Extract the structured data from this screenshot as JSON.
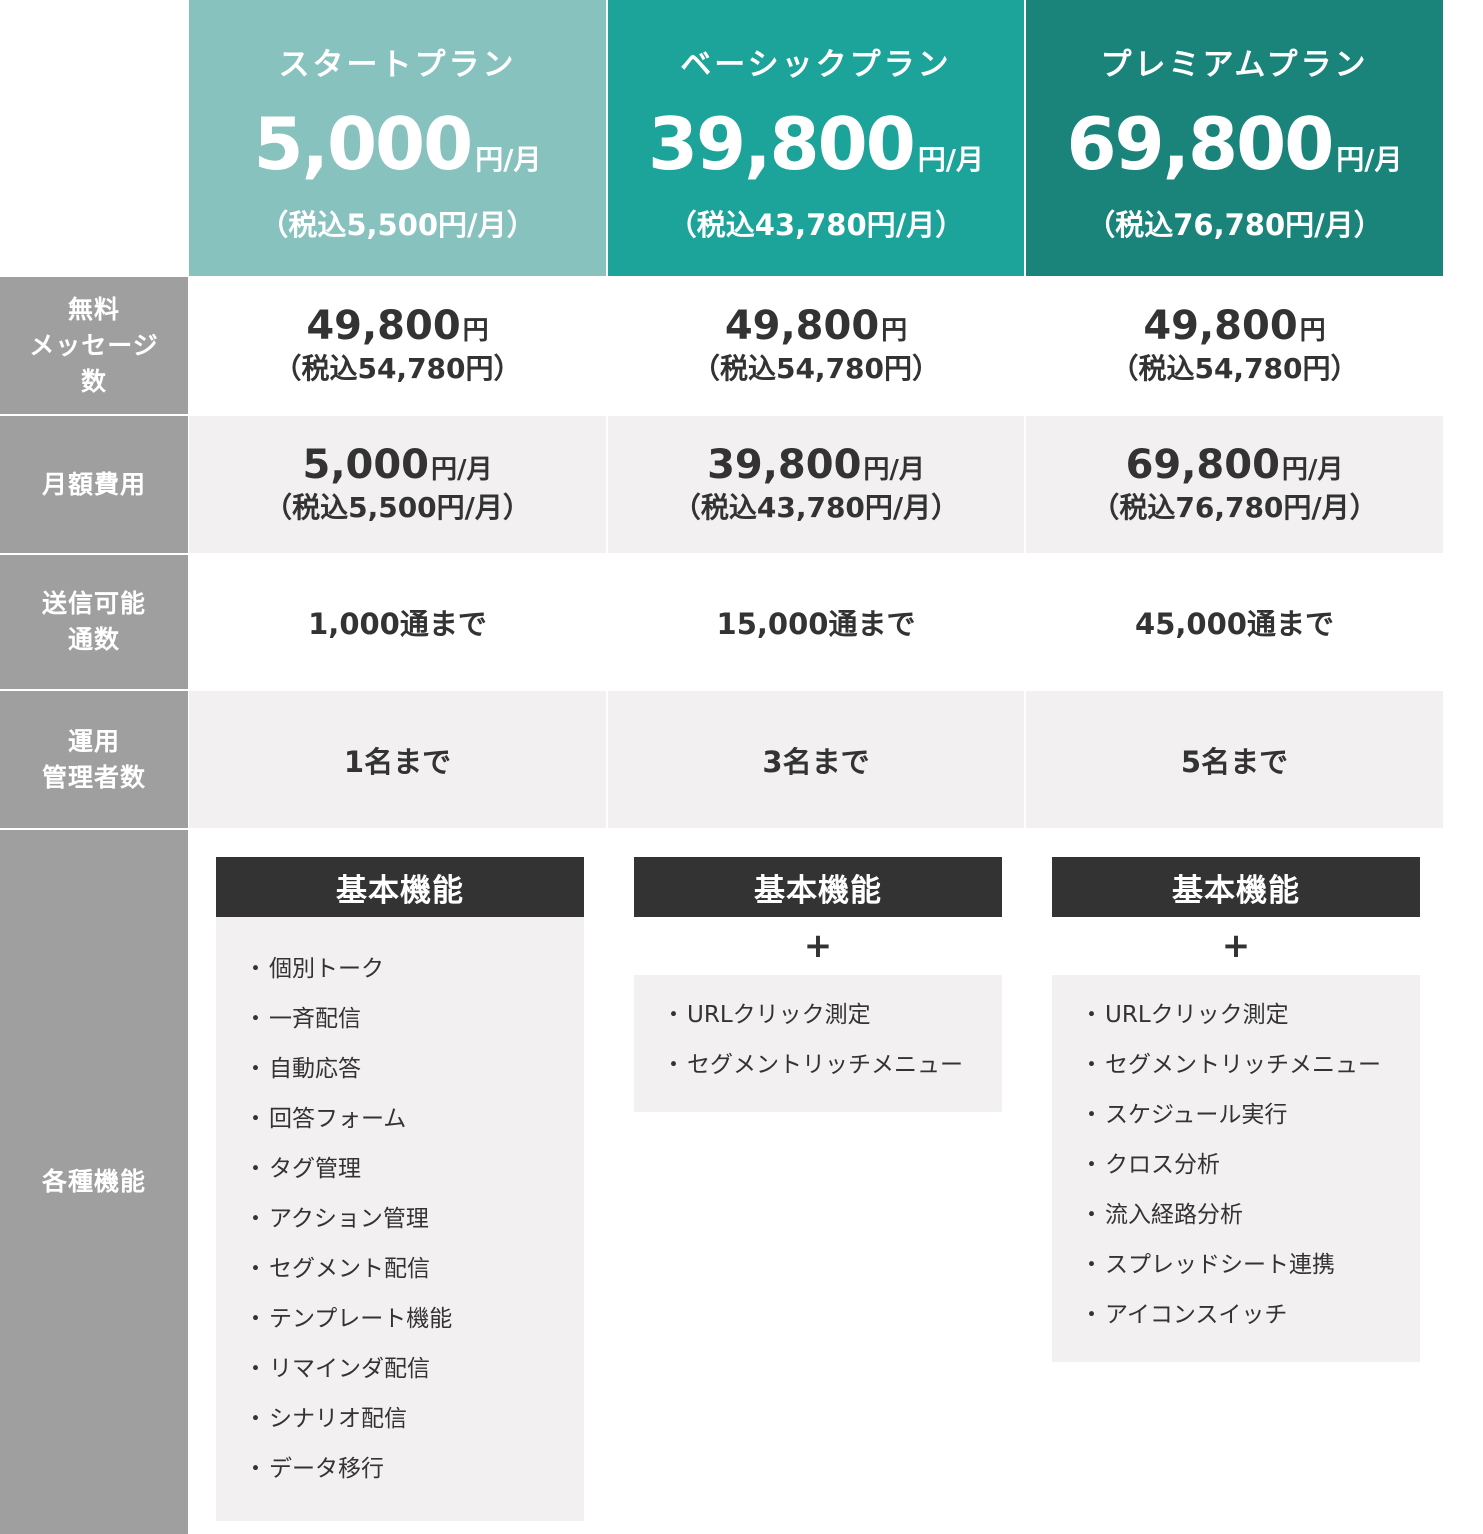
{
  "colors": {
    "start": "#87c2bf",
    "basic": "#1ca39a",
    "premium": "#1a847b",
    "label_bg": "#9f9f9f",
    "feature_head": "#333333",
    "cell_gray": "#f2f0f0"
  },
  "plans": [
    {
      "name": "スタートプラン",
      "price": "5,000",
      "unit": "円/月",
      "tax": "（税込5,500円/月）",
      "free_msg_price": "49,800",
      "free_msg_unit": "円",
      "free_msg_tax": "（税込54,780円）",
      "monthly_price": "5,000",
      "monthly_unit": "円/月",
      "monthly_tax": "（税込5,500円/月）",
      "send_count": "1,000通まで",
      "admins": "1名まで",
      "feature_title": "基本機能",
      "plus": "",
      "features": [
        "個別トーク",
        "一斉配信",
        "自動応答",
        "回答フォーム",
        "タグ管理",
        "アクション管理",
        "セグメント配信",
        "テンプレート機能",
        "リマインダ配信",
        "シナリオ配信",
        "データ移行"
      ]
    },
    {
      "name": "ベーシックプラン",
      "price": "39,800",
      "unit": "円/月",
      "tax": "（税込43,780円/月）",
      "free_msg_price": "49,800",
      "free_msg_unit": "円",
      "free_msg_tax": "（税込54,780円）",
      "monthly_price": "39,800",
      "monthly_unit": "円/月",
      "monthly_tax": "（税込43,780円/月）",
      "send_count": "15,000通まで",
      "admins": "3名まで",
      "feature_title": "基本機能",
      "plus": "+",
      "features": [
        "URLクリック測定",
        "セグメントリッチメニュー"
      ]
    },
    {
      "name": "プレミアムプラン",
      "price": "69,800",
      "unit": "円/月",
      "tax": "（税込76,780円/月）",
      "free_msg_price": "49,800",
      "free_msg_unit": "円",
      "free_msg_tax": "（税込54,780円）",
      "monthly_price": "69,800",
      "monthly_unit": "円/月",
      "monthly_tax": "（税込76,780円/月）",
      "send_count": "45,000通まで",
      "admins": "5名まで",
      "feature_title": "基本機能",
      "plus": "+",
      "features": [
        "URLクリック測定",
        "セグメントリッチメニュー",
        "スケジュール実行",
        "クロス分析",
        "流入経路分析",
        "スプレッドシート連携",
        "アイコンスイッチ"
      ]
    }
  ],
  "row_labels": {
    "free_msg": [
      "無料",
      "メッセージ",
      "数"
    ],
    "monthly": [
      "月額費用"
    ],
    "send": [
      "送信可能",
      "通数"
    ],
    "admins": [
      "運用",
      "管理者数"
    ],
    "features": [
      "各種機能"
    ]
  }
}
